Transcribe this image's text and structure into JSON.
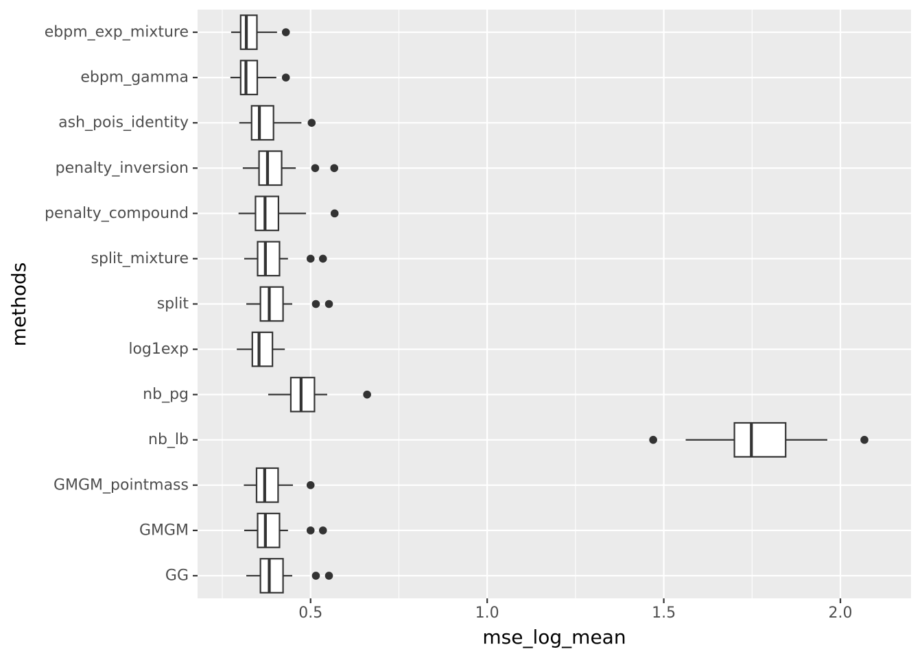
{
  "chart_data": {
    "type": "boxplot",
    "orientation": "horizontal",
    "xlabel": "mse_log_mean",
    "ylabel": "methods",
    "xlim": [
      0.18,
      2.2
    ],
    "x_ticks": [
      0.5,
      1.0,
      1.5,
      2.0
    ],
    "x_tick_labels": [
      "0.5",
      "1.0",
      "1.5",
      "2.0"
    ],
    "grid": true,
    "legend": "none",
    "colors": {
      "panel_bg": "#ebebeb",
      "grid": "#ffffff",
      "box_fill": "#ffffff",
      "box_line": "#333333",
      "outlier": "#333333",
      "tick_text": "#4d4d4d"
    },
    "categories": [
      "ebpm_exp_mixture",
      "ebpm_gamma",
      "ash_pois_identity",
      "penalty_inversion",
      "penalty_compound",
      "split_mixture",
      "split",
      "log1exp",
      "nb_pg",
      "nb_lb",
      "GMGM_pointmass",
      "GMGM",
      "GG"
    ],
    "boxes": [
      {
        "method": "ebpm_exp_mixture",
        "whisker_low": 0.275,
        "q1": 0.302,
        "median": 0.318,
        "q3": 0.348,
        "whisker_high": 0.405,
        "outliers": [
          0.43
        ]
      },
      {
        "method": "ebpm_gamma",
        "whisker_low": 0.273,
        "q1": 0.302,
        "median": 0.317,
        "q3": 0.349,
        "whisker_high": 0.403,
        "outliers": [
          0.43
        ]
      },
      {
        "method": "ash_pois_identity",
        "whisker_low": 0.298,
        "q1": 0.333,
        "median": 0.355,
        "q3": 0.395,
        "whisker_high": 0.474,
        "outliers": [
          0.503
        ]
      },
      {
        "method": "penalty_inversion",
        "whisker_low": 0.308,
        "q1": 0.354,
        "median": 0.378,
        "q3": 0.418,
        "whisker_high": 0.458,
        "outliers": [
          0.513,
          0.567
        ]
      },
      {
        "method": "penalty_compound",
        "whisker_low": 0.296,
        "q1": 0.344,
        "median": 0.371,
        "q3": 0.409,
        "whisker_high": 0.487,
        "outliers": [
          0.568
        ]
      },
      {
        "method": "split_mixture",
        "whisker_low": 0.312,
        "q1": 0.35,
        "median": 0.372,
        "q3": 0.412,
        "whisker_high": 0.436,
        "outliers": [
          0.5,
          0.535
        ]
      },
      {
        "method": "split",
        "whisker_low": 0.318,
        "q1": 0.358,
        "median": 0.383,
        "q3": 0.422,
        "whisker_high": 0.448,
        "outliers": [
          0.515,
          0.552
        ]
      },
      {
        "method": "log1exp",
        "whisker_low": 0.291,
        "q1": 0.335,
        "median": 0.354,
        "q3": 0.392,
        "whisker_high": 0.427,
        "outliers": []
      },
      {
        "method": "nb_pg",
        "whisker_low": 0.38,
        "q1": 0.444,
        "median": 0.473,
        "q3": 0.511,
        "whisker_high": 0.547,
        "outliers": [
          0.66
        ]
      },
      {
        "method": "nb_lb",
        "whisker_low": 1.562,
        "q1": 1.7,
        "median": 1.748,
        "q3": 1.845,
        "whisker_high": 1.963,
        "outliers": [
          1.47,
          2.068
        ]
      },
      {
        "method": "GMGM_pointmass",
        "whisker_low": 0.311,
        "q1": 0.347,
        "median": 0.37,
        "q3": 0.408,
        "whisker_high": 0.45,
        "outliers": [
          0.5
        ]
      },
      {
        "method": "GMGM",
        "whisker_low": 0.312,
        "q1": 0.35,
        "median": 0.372,
        "q3": 0.412,
        "whisker_high": 0.436,
        "outliers": [
          0.5,
          0.535
        ]
      },
      {
        "method": "GG",
        "whisker_low": 0.318,
        "q1": 0.358,
        "median": 0.383,
        "q3": 0.422,
        "whisker_high": 0.448,
        "outliers": [
          0.515,
          0.552
        ]
      }
    ]
  }
}
